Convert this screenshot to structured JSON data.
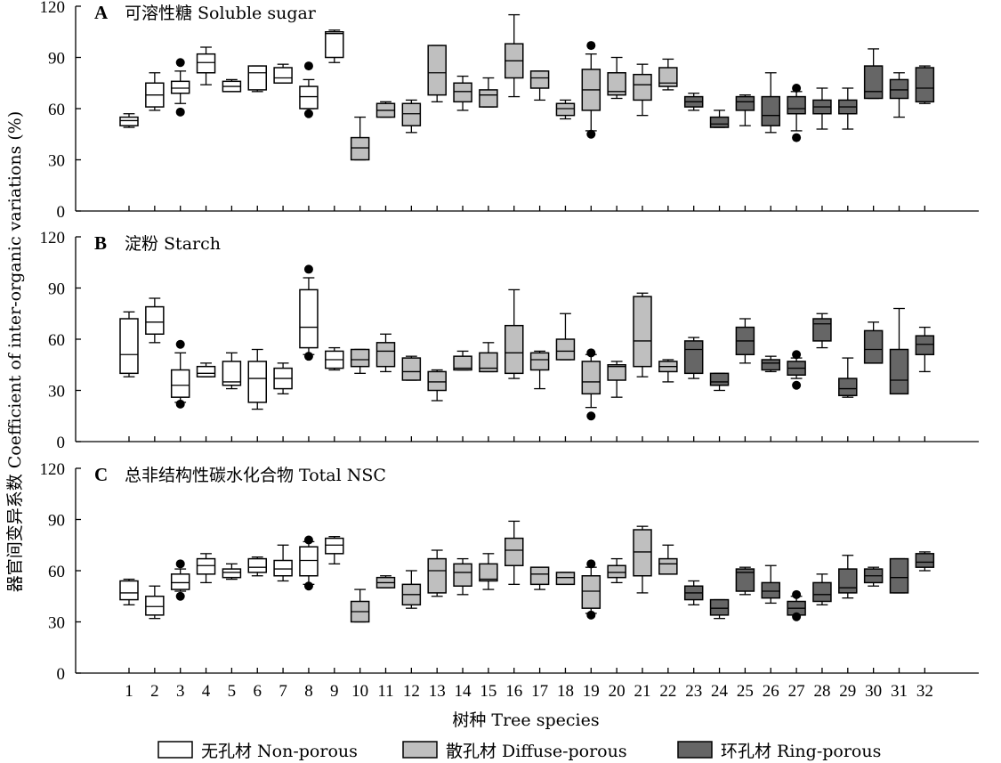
{
  "chart_data": {
    "type": "boxplot",
    "xlabel": "树种 Tree species",
    "ylabel": "器官间变异系数 Coefficient of inter-organic variations (%)",
    "x_ticks": [
      "1",
      "2",
      "3",
      "4",
      "5",
      "6",
      "7",
      "8",
      "9",
      "10",
      "11",
      "12",
      "13",
      "14",
      "15",
      "16",
      "17",
      "18",
      "19",
      "20",
      "21",
      "22",
      "23",
      "24",
      "25",
      "26",
      "27",
      "28",
      "29",
      "30",
      "31",
      "32"
    ],
    "y_ticks": [
      "0",
      "30",
      "60",
      "90",
      "120"
    ],
    "ylim": [
      0,
      120
    ],
    "grid": false,
    "legend_position": "bottom",
    "groups": [
      {
        "name": "无孔材 Non-porous",
        "color": "#ffffff",
        "species": [
          1,
          2,
          3,
          4,
          5,
          6,
          7,
          8,
          9
        ]
      },
      {
        "name": "散孔材 Diffuse-porous",
        "color": "#bfbfbf",
        "species": [
          10,
          11,
          12,
          13,
          14,
          15,
          16,
          17,
          18,
          19,
          20,
          21,
          22
        ]
      },
      {
        "name": "环孔材 Ring-porous",
        "color": "#666666",
        "species": [
          23,
          24,
          25,
          26,
          27,
          28,
          29,
          30,
          31,
          32
        ]
      }
    ],
    "panels": [
      {
        "letter": "A",
        "title": "可溶性糖 Soluble sugar",
        "boxes": [
          {
            "x": 1,
            "wlo": 49,
            "q1": 50,
            "med": 53,
            "q3": 55,
            "whi": 57,
            "out": []
          },
          {
            "x": 2,
            "wlo": 59,
            "q1": 61,
            "med": 68,
            "q3": 75,
            "whi": 81,
            "out": []
          },
          {
            "x": 3,
            "wlo": 63,
            "q1": 69,
            "med": 72,
            "q3": 76,
            "whi": 82,
            "out": [
              58,
              87
            ]
          },
          {
            "x": 4,
            "wlo": 74,
            "q1": 81,
            "med": 87,
            "q3": 92,
            "whi": 96,
            "out": []
          },
          {
            "x": 5,
            "wlo": 70,
            "q1": 70,
            "med": 73,
            "q3": 76,
            "whi": 77,
            "out": []
          },
          {
            "x": 6,
            "wlo": 70,
            "q1": 71,
            "med": 81,
            "q3": 85,
            "whi": 85,
            "out": []
          },
          {
            "x": 7,
            "wlo": 75,
            "q1": 75,
            "med": 78,
            "q3": 84,
            "whi": 86,
            "out": []
          },
          {
            "x": 8,
            "wlo": 60,
            "q1": 60,
            "med": 67,
            "q3": 73,
            "whi": 77,
            "out": [
              57,
              85
            ]
          },
          {
            "x": 9,
            "wlo": 87,
            "q1": 90,
            "med": 104,
            "q3": 105,
            "whi": 106,
            "out": []
          },
          {
            "x": 10,
            "wlo": 30,
            "q1": 30,
            "med": 37,
            "q3": 43,
            "whi": 55,
            "out": []
          },
          {
            "x": 11,
            "wlo": 55,
            "q1": 55,
            "med": 59,
            "q3": 63,
            "whi": 64,
            "out": []
          },
          {
            "x": 12,
            "wlo": 46,
            "q1": 50,
            "med": 57,
            "q3": 63,
            "whi": 65,
            "out": []
          },
          {
            "x": 13,
            "wlo": 64,
            "q1": 68,
            "med": 81,
            "q3": 97,
            "whi": 97,
            "out": []
          },
          {
            "x": 14,
            "wlo": 59,
            "q1": 64,
            "med": 70,
            "q3": 75,
            "whi": 79,
            "out": []
          },
          {
            "x": 15,
            "wlo": 61,
            "q1": 61,
            "med": 68,
            "q3": 71,
            "whi": 78,
            "out": []
          },
          {
            "x": 16,
            "wlo": 67,
            "q1": 78,
            "med": 88,
            "q3": 98,
            "whi": 115,
            "out": []
          },
          {
            "x": 17,
            "wlo": 65,
            "q1": 72,
            "med": 78,
            "q3": 82,
            "whi": 82,
            "out": []
          },
          {
            "x": 18,
            "wlo": 54,
            "q1": 56,
            "med": 60,
            "q3": 63,
            "whi": 65,
            "out": []
          },
          {
            "x": 19,
            "wlo": 47,
            "q1": 59,
            "med": 71,
            "q3": 83,
            "whi": 92,
            "out": [
              45,
              97
            ]
          },
          {
            "x": 20,
            "wlo": 66,
            "q1": 68,
            "med": 70,
            "q3": 81,
            "whi": 90,
            "out": []
          },
          {
            "x": 21,
            "wlo": 56,
            "q1": 65,
            "med": 74,
            "q3": 80,
            "whi": 86,
            "out": []
          },
          {
            "x": 22,
            "wlo": 71,
            "q1": 73,
            "med": 75,
            "q3": 84,
            "whi": 89,
            "out": []
          },
          {
            "x": 23,
            "wlo": 59,
            "q1": 61,
            "med": 64,
            "q3": 67,
            "whi": 69,
            "out": []
          },
          {
            "x": 24,
            "wlo": 49,
            "q1": 49,
            "med": 51,
            "q3": 55,
            "whi": 59,
            "out": []
          },
          {
            "x": 25,
            "wlo": 50,
            "q1": 59,
            "med": 64,
            "q3": 67,
            "whi": 68,
            "out": []
          },
          {
            "x": 26,
            "wlo": 46,
            "q1": 50,
            "med": 56,
            "q3": 67,
            "whi": 81,
            "out": []
          },
          {
            "x": 27,
            "wlo": 47,
            "q1": 57,
            "med": 60,
            "q3": 67,
            "whi": 70,
            "out": [
              43,
              72
            ]
          },
          {
            "x": 28,
            "wlo": 48,
            "q1": 57,
            "med": 61,
            "q3": 65,
            "whi": 72,
            "out": []
          },
          {
            "x": 29,
            "wlo": 48,
            "q1": 57,
            "med": 61,
            "q3": 65,
            "whi": 72,
            "out": []
          },
          {
            "x": 30,
            "wlo": 66,
            "q1": 66,
            "med": 70,
            "q3": 85,
            "whi": 95,
            "out": []
          },
          {
            "x": 31,
            "wlo": 55,
            "q1": 66,
            "med": 71,
            "q3": 77,
            "whi": 81,
            "out": []
          },
          {
            "x": 32,
            "wlo": 63,
            "q1": 64,
            "med": 72,
            "q3": 84,
            "whi": 85,
            "out": []
          }
        ]
      },
      {
        "letter": "B",
        "title": "淀粉 Starch",
        "boxes": [
          {
            "x": 1,
            "wlo": 38,
            "q1": 40,
            "med": 51,
            "q3": 72,
            "whi": 76,
            "out": []
          },
          {
            "x": 2,
            "wlo": 58,
            "q1": 63,
            "med": 70,
            "q3": 79,
            "whi": 84,
            "out": []
          },
          {
            "x": 3,
            "wlo": 23,
            "q1": 26,
            "med": 33,
            "q3": 42,
            "whi": 52,
            "out": [
              22,
              57
            ]
          },
          {
            "x": 4,
            "wlo": 38,
            "q1": 38,
            "med": 40,
            "q3": 44,
            "whi": 46,
            "out": []
          },
          {
            "x": 5,
            "wlo": 31,
            "q1": 33,
            "med": 35,
            "q3": 47,
            "whi": 52,
            "out": []
          },
          {
            "x": 6,
            "wlo": 19,
            "q1": 23,
            "med": 37,
            "q3": 47,
            "whi": 54,
            "out": []
          },
          {
            "x": 7,
            "wlo": 28,
            "q1": 31,
            "med": 37,
            "q3": 43,
            "whi": 46,
            "out": []
          },
          {
            "x": 8,
            "wlo": 51,
            "q1": 55,
            "med": 67,
            "q3": 89,
            "whi": 96,
            "out": [
              50,
              101
            ]
          },
          {
            "x": 9,
            "wlo": 42,
            "q1": 43,
            "med": 48,
            "q3": 53,
            "whi": 55,
            "out": []
          },
          {
            "x": 10,
            "wlo": 40,
            "q1": 44,
            "med": 48,
            "q3": 54,
            "whi": 54,
            "out": []
          },
          {
            "x": 11,
            "wlo": 41,
            "q1": 44,
            "med": 53,
            "q3": 58,
            "whi": 63,
            "out": []
          },
          {
            "x": 12,
            "wlo": 36,
            "q1": 36,
            "med": 41,
            "q3": 49,
            "whi": 50,
            "out": []
          },
          {
            "x": 13,
            "wlo": 24,
            "q1": 30,
            "med": 35,
            "q3": 41,
            "whi": 42,
            "out": []
          },
          {
            "x": 14,
            "wlo": 42,
            "q1": 42,
            "med": 43,
            "q3": 50,
            "whi": 53,
            "out": []
          },
          {
            "x": 15,
            "wlo": 41,
            "q1": 41,
            "med": 43,
            "q3": 52,
            "whi": 58,
            "out": []
          },
          {
            "x": 16,
            "wlo": 37,
            "q1": 40,
            "med": 52,
            "q3": 68,
            "whi": 89,
            "out": []
          },
          {
            "x": 17,
            "wlo": 31,
            "q1": 42,
            "med": 48,
            "q3": 52,
            "whi": 53,
            "out": []
          },
          {
            "x": 18,
            "wlo": 48,
            "q1": 48,
            "med": 53,
            "q3": 60,
            "whi": 75,
            "out": []
          },
          {
            "x": 19,
            "wlo": 20,
            "q1": 28,
            "med": 35,
            "q3": 47,
            "whi": 51,
            "out": [
              15,
              52
            ]
          },
          {
            "x": 20,
            "wlo": 26,
            "q1": 36,
            "med": 44,
            "q3": 45,
            "whi": 47,
            "out": []
          },
          {
            "x": 21,
            "wlo": 38,
            "q1": 44,
            "med": 59,
            "q3": 85,
            "whi": 87,
            "out": []
          },
          {
            "x": 22,
            "wlo": 35,
            "q1": 41,
            "med": 44,
            "q3": 47,
            "whi": 48,
            "out": []
          },
          {
            "x": 23,
            "wlo": 37,
            "q1": 40,
            "med": 54,
            "q3": 59,
            "whi": 61,
            "out": []
          },
          {
            "x": 24,
            "wlo": 30,
            "q1": 33,
            "med": 35,
            "q3": 40,
            "whi": 40,
            "out": []
          },
          {
            "x": 25,
            "wlo": 46,
            "q1": 51,
            "med": 59,
            "q3": 67,
            "whi": 72,
            "out": []
          },
          {
            "x": 26,
            "wlo": 41,
            "q1": 42,
            "med": 46,
            "q3": 48,
            "whi": 50,
            "out": []
          },
          {
            "x": 27,
            "wlo": 37,
            "q1": 39,
            "med": 43,
            "q3": 47,
            "whi": 49,
            "out": [
              33,
              51
            ]
          },
          {
            "x": 28,
            "wlo": 55,
            "q1": 59,
            "med": 69,
            "q3": 72,
            "whi": 75,
            "out": []
          },
          {
            "x": 29,
            "wlo": 26,
            "q1": 27,
            "med": 31,
            "q3": 37,
            "whi": 49,
            "out": []
          },
          {
            "x": 30,
            "wlo": 46,
            "q1": 46,
            "med": 54,
            "q3": 65,
            "whi": 70,
            "out": []
          },
          {
            "x": 31,
            "wlo": 28,
            "q1": 28,
            "med": 36,
            "q3": 54,
            "whi": 78,
            "out": []
          },
          {
            "x": 32,
            "wlo": 41,
            "q1": 51,
            "med": 57,
            "q3": 62,
            "whi": 67,
            "out": []
          }
        ]
      },
      {
        "letter": "C",
        "title": "总非结构性碳水化合物 Total NSC",
        "boxes": [
          {
            "x": 1,
            "wlo": 40,
            "q1": 43,
            "med": 47,
            "q3": 54,
            "whi": 55,
            "out": []
          },
          {
            "x": 2,
            "wlo": 32,
            "q1": 34,
            "med": 39,
            "q3": 45,
            "whi": 51,
            "out": []
          },
          {
            "x": 3,
            "wlo": 48,
            "q1": 49,
            "med": 53,
            "q3": 58,
            "whi": 61,
            "out": [
              45,
              64
            ]
          },
          {
            "x": 4,
            "wlo": 53,
            "q1": 58,
            "med": 63,
            "q3": 67,
            "whi": 70,
            "out": []
          },
          {
            "x": 5,
            "wlo": 55,
            "q1": 56,
            "med": 59,
            "q3": 61,
            "whi": 64,
            "out": []
          },
          {
            "x": 6,
            "wlo": 57,
            "q1": 59,
            "med": 62,
            "q3": 67,
            "whi": 68,
            "out": []
          },
          {
            "x": 7,
            "wlo": 54,
            "q1": 57,
            "med": 61,
            "q3": 66,
            "whi": 75,
            "out": []
          },
          {
            "x": 8,
            "wlo": 52,
            "q1": 57,
            "med": 66,
            "q3": 74,
            "whi": 77,
            "out": [
              51,
              78
            ]
          },
          {
            "x": 9,
            "wlo": 64,
            "q1": 70,
            "med": 75,
            "q3": 79,
            "whi": 80,
            "out": []
          },
          {
            "x": 10,
            "wlo": 30,
            "q1": 30,
            "med": 36,
            "q3": 42,
            "whi": 49,
            "out": []
          },
          {
            "x": 11,
            "wlo": 50,
            "q1": 50,
            "med": 53,
            "q3": 56,
            "whi": 57,
            "out": []
          },
          {
            "x": 12,
            "wlo": 38,
            "q1": 40,
            "med": 46,
            "q3": 52,
            "whi": 60,
            "out": []
          },
          {
            "x": 13,
            "wlo": 45,
            "q1": 47,
            "med": 60,
            "q3": 67,
            "whi": 72,
            "out": []
          },
          {
            "x": 14,
            "wlo": 46,
            "q1": 51,
            "med": 59,
            "q3": 64,
            "whi": 67,
            "out": []
          },
          {
            "x": 15,
            "wlo": 49,
            "q1": 54,
            "med": 55,
            "q3": 64,
            "whi": 70,
            "out": []
          },
          {
            "x": 16,
            "wlo": 52,
            "q1": 63,
            "med": 72,
            "q3": 79,
            "whi": 89,
            "out": []
          },
          {
            "x": 17,
            "wlo": 49,
            "q1": 52,
            "med": 58,
            "q3": 62,
            "whi": 62,
            "out": []
          },
          {
            "x": 18,
            "wlo": 52,
            "q1": 52,
            "med": 56,
            "q3": 59,
            "whi": 59,
            "out": []
          },
          {
            "x": 19,
            "wlo": 35,
            "q1": 38,
            "med": 48,
            "q3": 57,
            "whi": 62,
            "out": [
              34,
              64
            ]
          },
          {
            "x": 20,
            "wlo": 53,
            "q1": 56,
            "med": 59,
            "q3": 63,
            "whi": 67,
            "out": []
          },
          {
            "x": 21,
            "wlo": 47,
            "q1": 57,
            "med": 71,
            "q3": 84,
            "whi": 86,
            "out": []
          },
          {
            "x": 22,
            "wlo": 58,
            "q1": 58,
            "med": 64,
            "q3": 67,
            "whi": 75,
            "out": []
          },
          {
            "x": 23,
            "wlo": 40,
            "q1": 43,
            "med": 47,
            "q3": 51,
            "whi": 54,
            "out": []
          },
          {
            "x": 24,
            "wlo": 32,
            "q1": 34,
            "med": 38,
            "q3": 43,
            "whi": 43,
            "out": []
          },
          {
            "x": 25,
            "wlo": 46,
            "q1": 48,
            "med": 59,
            "q3": 61,
            "whi": 62,
            "out": []
          },
          {
            "x": 26,
            "wlo": 41,
            "q1": 44,
            "med": 48,
            "q3": 53,
            "whi": 63,
            "out": []
          },
          {
            "x": 27,
            "wlo": 34,
            "q1": 34,
            "med": 38,
            "q3": 42,
            "whi": 45,
            "out": [
              33,
              46
            ]
          },
          {
            "x": 28,
            "wlo": 40,
            "q1": 42,
            "med": 46,
            "q3": 53,
            "whi": 58,
            "out": []
          },
          {
            "x": 29,
            "wlo": 44,
            "q1": 47,
            "med": 50,
            "q3": 61,
            "whi": 69,
            "out": []
          },
          {
            "x": 30,
            "wlo": 51,
            "q1": 53,
            "med": 57,
            "q3": 61,
            "whi": 62,
            "out": []
          },
          {
            "x": 31,
            "wlo": 47,
            "q1": 47,
            "med": 56,
            "q3": 67,
            "whi": 67,
            "out": []
          },
          {
            "x": 32,
            "wlo": 60,
            "q1": 62,
            "med": 65,
            "q3": 70,
            "whi": 71,
            "out": []
          }
        ]
      }
    ]
  }
}
